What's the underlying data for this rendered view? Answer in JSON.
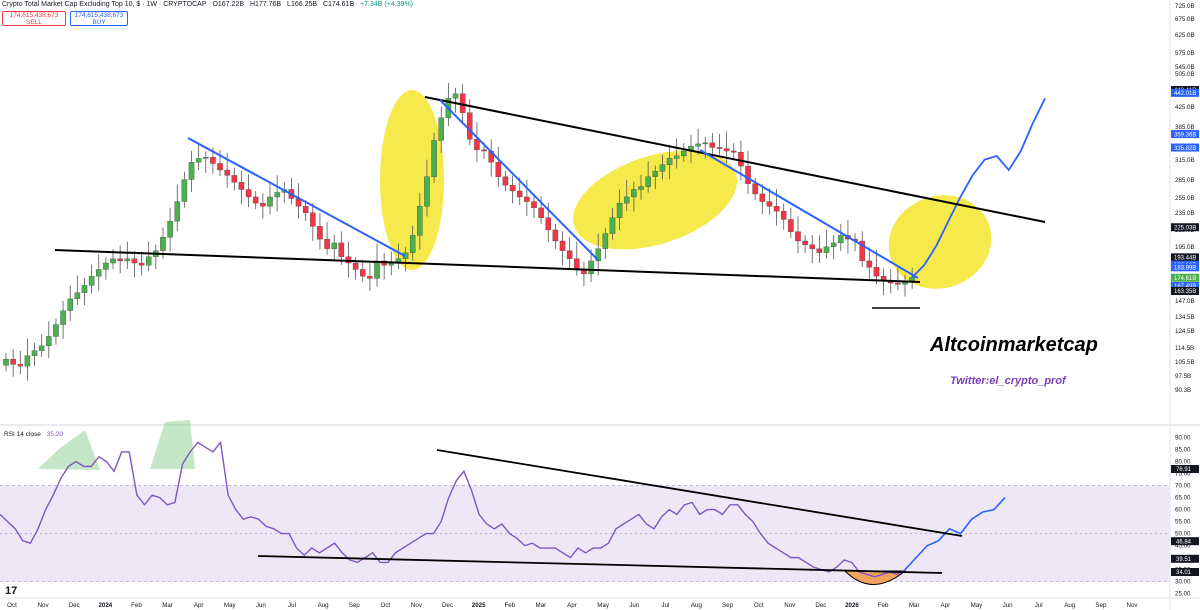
{
  "header": {
    "title": "Crypto Total Market Cap Excluding Top 10, $ · 1W · CRYPTOCAP",
    "open": "O167.22B",
    "high": "H177.76B",
    "low": "L166.25B",
    "close": "C174.61B",
    "change": "+7.34B (+4.39%)",
    "sell_value": "174,615,438,673",
    "sell_label": "SELL",
    "buy_value": "174,615,438,673",
    "buy_label": "BUY"
  },
  "rsi_header": {
    "label": "RSI 14 close",
    "value": "35.20"
  },
  "annotations": {
    "brand": "Altcoinmarketcap",
    "handle": "Twitter:el_crypto_prof"
  },
  "logo_text": "17",
  "colors": {
    "up": "#4caf50",
    "down": "#f23645",
    "rsi": "#7e57c2",
    "trend": "#2962ff",
    "highlight": "#f5e52d",
    "rsi_band": "#ede7f6"
  },
  "chart_data": [
    {
      "type": "candlestick",
      "title": "Crypto Total Market Cap Excluding Top 10, $ · 1W · CRYPTOCAP",
      "price_axis_ticks": [
        "725.0B",
        "675.0B",
        "625.0B",
        "575.0B",
        "545.0B",
        "505.0B",
        "465.0B",
        "425.0B",
        "385.0B",
        "345.0B",
        "315.0B",
        "285.0B",
        "255.0B",
        "235.0B",
        "215.0B",
        "195.0B",
        "175.0B",
        "165.0B",
        "147.0B",
        "134.5B",
        "124.5B",
        "114.5B",
        "105.5B",
        "97.5B",
        "90.3B"
      ],
      "price_labels": [
        {
          "value": "448.41B",
          "style": "black"
        },
        {
          "value": "442.01B",
          "style": "blue"
        },
        {
          "value": "359.36B",
          "style": "blue"
        },
        {
          "value": "335.82B",
          "style": "blue"
        },
        {
          "value": "225.03B",
          "style": "black"
        },
        {
          "value": "193.44B",
          "style": "black"
        },
        {
          "value": "186.39B",
          "style": "blue"
        },
        {
          "value": "183.99B",
          "style": "blue"
        },
        {
          "value": "174.61B",
          "style": "green"
        },
        {
          "value": "167.49B",
          "style": "blue"
        },
        {
          "value": "163.35B",
          "style": "black"
        }
      ],
      "time_axis": [
        "Oct",
        "Nov",
        "Dec",
        "2024",
        "Feb",
        "Mar",
        "Apr",
        "May",
        "Jun",
        "Jul",
        "Aug",
        "Sep",
        "Oct",
        "Nov",
        "Dec",
        "2025",
        "Feb",
        "Mar",
        "Apr",
        "May",
        "Jun",
        "Jul",
        "Aug",
        "Sep",
        "Oct",
        "Nov",
        "Dec",
        "2026",
        "Feb",
        "Mar",
        "Apr",
        "May",
        "Jun",
        "Jul",
        "Aug",
        "Sep",
        "Nov"
      ],
      "closes_billion": [
        116,
        113,
        112,
        118,
        121,
        124,
        130,
        138,
        148,
        157,
        162,
        168,
        176,
        182,
        188,
        192,
        190,
        192,
        188,
        186,
        194,
        200,
        214,
        232,
        256,
        286,
        312,
        318,
        320,
        310,
        300,
        292,
        282,
        272,
        262,
        254,
        250,
        262,
        268,
        272,
        260,
        250,
        242,
        226,
        212,
        202,
        208,
        194,
        188,
        182,
        176,
        174,
        190,
        186,
        188,
        192,
        198,
        216,
        250,
        290,
        348,
        390,
        430,
        440,
        400,
        350,
        332,
        330,
        312,
        290,
        278,
        270,
        262,
        256,
        248,
        236,
        222,
        210,
        200,
        192,
        182,
        178,
        190,
        202,
        218,
        236,
        254,
        262,
        272,
        276,
        290,
        298,
        308,
        318,
        322,
        330,
        338,
        342,
        344,
        336,
        334,
        330,
        328,
        306,
        280,
        266,
        256,
        250,
        244,
        234,
        220,
        210,
        206,
        202,
        198,
        204,
        208,
        216,
        212,
        210,
        190,
        184,
        176,
        172,
        170,
        169,
        172,
        175
      ],
      "projection_billion": [
        175,
        186,
        205,
        232,
        262,
        292,
        316,
        322,
        300,
        330,
        380,
        430
      ]
    },
    {
      "type": "line",
      "title": "RSI 14 close",
      "value": 35.2,
      "axis_ticks": [
        "90.00",
        "85.00",
        "80.00",
        "75.00",
        "70.00",
        "65.00",
        "60.00",
        "55.00",
        "50.00",
        "45.00",
        "40.00",
        "35.00",
        "30.00",
        "25.00"
      ],
      "axis_labels": [
        "76.91",
        "46.84",
        "39.51",
        "34.01"
      ],
      "band": [
        30,
        70
      ],
      "values": [
        58,
        55,
        52,
        47,
        46,
        52,
        60,
        66,
        73,
        78,
        80,
        78,
        78,
        82,
        80,
        76,
        84,
        84,
        66,
        62,
        66,
        65,
        62,
        63,
        79,
        84,
        88,
        86,
        84,
        88,
        66,
        60,
        56,
        57,
        56,
        53,
        52,
        50,
        50,
        44,
        41,
        44,
        42,
        44,
        46,
        42,
        39,
        38,
        40,
        42,
        38,
        38,
        42,
        44,
        46,
        48,
        50,
        50,
        55,
        65,
        72,
        76,
        68,
        58,
        54,
        52,
        54,
        50,
        48,
        45,
        46,
        44,
        44,
        44,
        42,
        40,
        44,
        42,
        44,
        44,
        46,
        52,
        54,
        56,
        58,
        54,
        52,
        57,
        60,
        58,
        62,
        63,
        58,
        60,
        60,
        58,
        62,
        62,
        58,
        55,
        50,
        46,
        44,
        42,
        40,
        40,
        38,
        36,
        35,
        34,
        36,
        39,
        38,
        34,
        33,
        32,
        33,
        34,
        33,
        35
      ],
      "projection": [
        35,
        40,
        45,
        47,
        52,
        50,
        56,
        59,
        60,
        65
      ]
    }
  ]
}
